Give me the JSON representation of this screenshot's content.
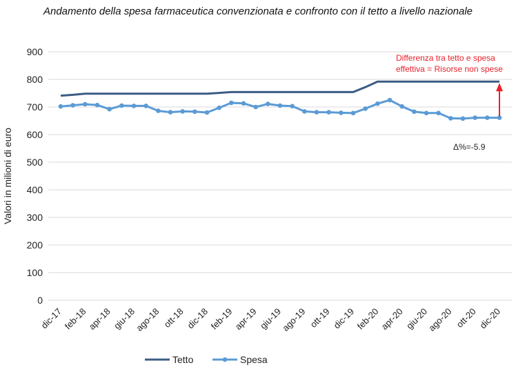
{
  "chart_data": {
    "type": "line",
    "title": "Andamento della spesa farmaceutica convenzionata e confronto con il tetto a livello nazionale",
    "ylabel": "Valori in milioni di euro",
    "xlabel": "",
    "ylim": [
      0,
      900
    ],
    "yticks": [
      0,
      100,
      200,
      300,
      400,
      500,
      600,
      700,
      800,
      900
    ],
    "grid": true,
    "legend_position": "bottom",
    "x": [
      "dic-17",
      "gen-18",
      "feb-18",
      "mar-18",
      "apr-18",
      "mag-18",
      "giu-18",
      "lug-18",
      "ago-18",
      "set-18",
      "ott-18",
      "nov-18",
      "dic-18",
      "gen-19",
      "feb-19",
      "mar-19",
      "apr-19",
      "mag-19",
      "giu-19",
      "lug-19",
      "ago-19",
      "set-19",
      "ott-19",
      "nov-19",
      "dic-19",
      "gen-20",
      "feb-20",
      "mar-20",
      "apr-20",
      "mag-20",
      "giu-20",
      "lug-20",
      "ago-20",
      "set-20",
      "ott-20",
      "nov-20",
      "dic-20"
    ],
    "tick_labels": [
      "dic-17",
      "feb-18",
      "apr-18",
      "giu-18",
      "ago-18",
      "ott-18",
      "dic-18",
      "feb-19",
      "apr-19",
      "giu-19",
      "ago-19",
      "ott-19",
      "dic-19",
      "feb-20",
      "apr-20",
      "giu-20",
      "ago-20",
      "ott-20",
      "dic-20"
    ],
    "series": [
      {
        "name": "Tetto",
        "color": "#3b5b84",
        "marker": false,
        "values": [
          741,
          744,
          748,
          748,
          748,
          748,
          748,
          748,
          748,
          748,
          748,
          748,
          748,
          751,
          754,
          754,
          754,
          754,
          754,
          754,
          754,
          754,
          754,
          754,
          754,
          772,
          792,
          792,
          792,
          792,
          792,
          792,
          792,
          792,
          792,
          792,
          792
        ]
      },
      {
        "name": "Spesa",
        "color": "#5b9bd5",
        "marker": true,
        "values": [
          702,
          706,
          710,
          707,
          692,
          705,
          704,
          704,
          686,
          681,
          684,
          683,
          680,
          697,
          715,
          713,
          700,
          711,
          705,
          703,
          684,
          681,
          681,
          679,
          678,
          694,
          712,
          725,
          702,
          683,
          678,
          678,
          659,
          658,
          661,
          661,
          661
        ]
      }
    ],
    "annotations": {
      "gap_label": "Differenza tra tetto e spesa\neffettiva = Risorse non spese",
      "delta_label": "Δ%=-5.9",
      "color": "#e8202a"
    }
  }
}
